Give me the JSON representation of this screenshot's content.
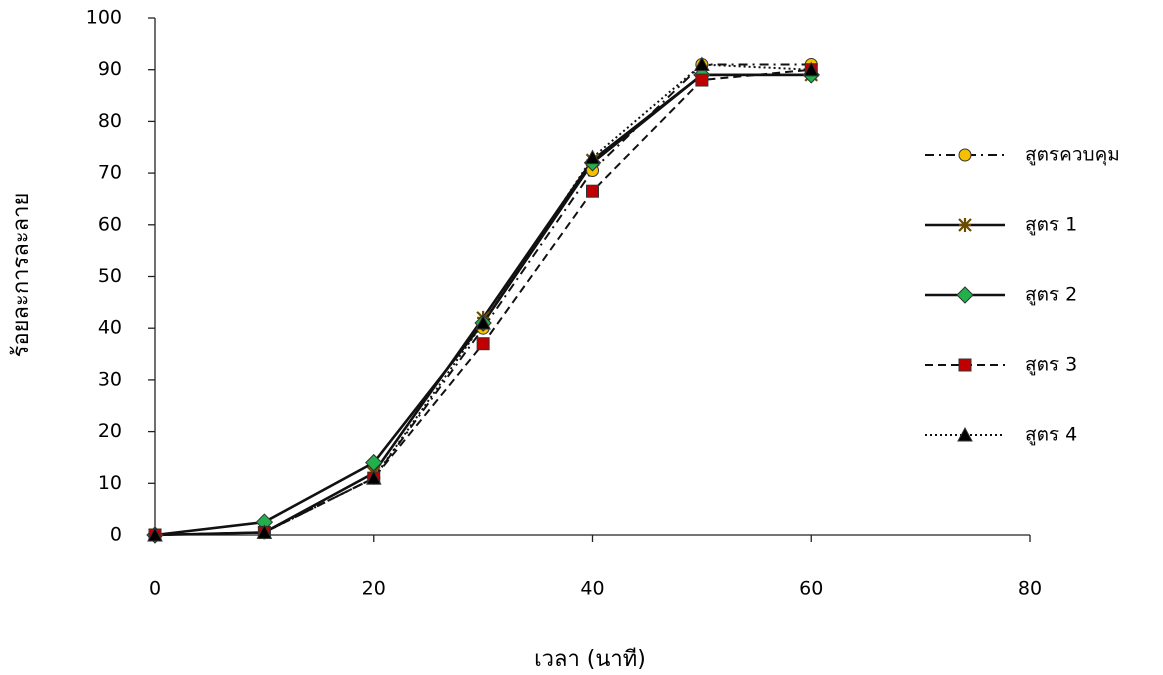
{
  "chart_data": {
    "type": "line",
    "x_label": "เวลา (นาที)",
    "y_label": "ร้อยละการละลาย",
    "x": [
      0,
      10,
      20,
      30,
      40,
      50,
      60
    ],
    "xlim": [
      0,
      80
    ],
    "xticks": [
      0,
      20,
      40,
      60,
      80
    ],
    "ylim": [
      0,
      100
    ],
    "yticks": [
      0,
      10,
      20,
      30,
      40,
      50,
      60,
      70,
      80,
      90,
      100
    ],
    "grid": false,
    "legend": "right",
    "series": [
      {
        "name": "สูตรควบคุม",
        "color": "#f5c000",
        "marker": "circle",
        "line_style": "dashdot",
        "values": [
          0,
          0.5,
          11,
          40,
          70.5,
          91,
          91
        ]
      },
      {
        "name": "สูตร 1",
        "color": "#e0a800",
        "marker": "star",
        "line_style": "solid",
        "values": [
          0,
          0.5,
          12,
          42,
          72.5,
          89,
          89
        ]
      },
      {
        "name": "สูตร 2",
        "color": "#22b04c",
        "marker": "diamond",
        "line_style": "solid",
        "values": [
          0,
          2.5,
          14,
          41,
          72,
          89,
          89
        ]
      },
      {
        "name": "สูตร 3",
        "color": "#c00000",
        "marker": "square",
        "line_style": "dashed",
        "values": [
          0,
          0.5,
          11,
          37,
          66.5,
          88,
          90
        ]
      },
      {
        "name": "สูตร 4",
        "color": "#000000",
        "marker": "triangle",
        "line_style": "dotted",
        "values": [
          0,
          0.5,
          11,
          41,
          73,
          91,
          90
        ]
      }
    ]
  }
}
